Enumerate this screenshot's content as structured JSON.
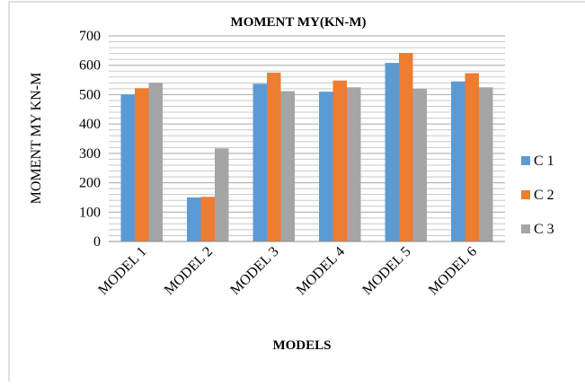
{
  "chart_data": {
    "type": "bar",
    "title": "MOMENT MY(KN-M)",
    "xlabel": "MODELS",
    "ylabel": "MOMENT MY KN-M",
    "categories": [
      "MODEL 1",
      "MODEL 2",
      "MODEL 3",
      "MODEL 4",
      "MODEL 5",
      "MODEL 6"
    ],
    "series": [
      {
        "name": "C 1",
        "color": "#5b9bd5",
        "values": [
          500,
          150,
          537,
          510,
          608,
          545
        ]
      },
      {
        "name": "C 2",
        "color": "#ed7d31",
        "values": [
          522,
          152,
          575,
          548,
          642,
          573
        ]
      },
      {
        "name": "C 3",
        "color": "#a5a5a5",
        "values": [
          540,
          317,
          512,
          525,
          520,
          525
        ]
      }
    ],
    "ylim": [
      0,
      700
    ],
    "yticks": [
      0,
      100,
      200,
      300,
      400,
      500,
      600,
      700
    ],
    "minor_gridlines_per_major": 5,
    "grid": true,
    "legend_position": "right"
  }
}
